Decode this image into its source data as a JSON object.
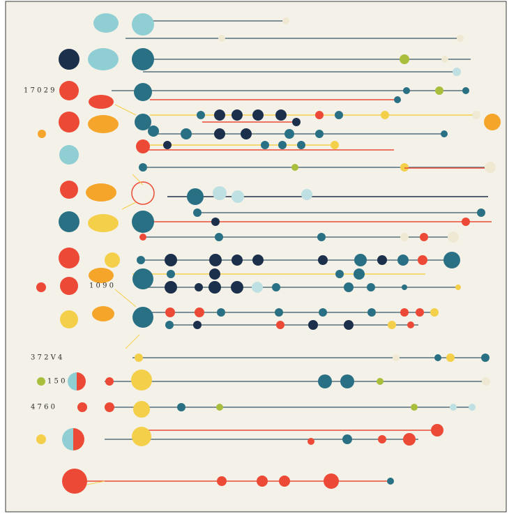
{
  "labels": [
    "1 7 0 2 9",
    "3 7 2 V 4",
    "1 5 0",
    "4 7 6 0",
    "1 0 9 0"
  ]
}
